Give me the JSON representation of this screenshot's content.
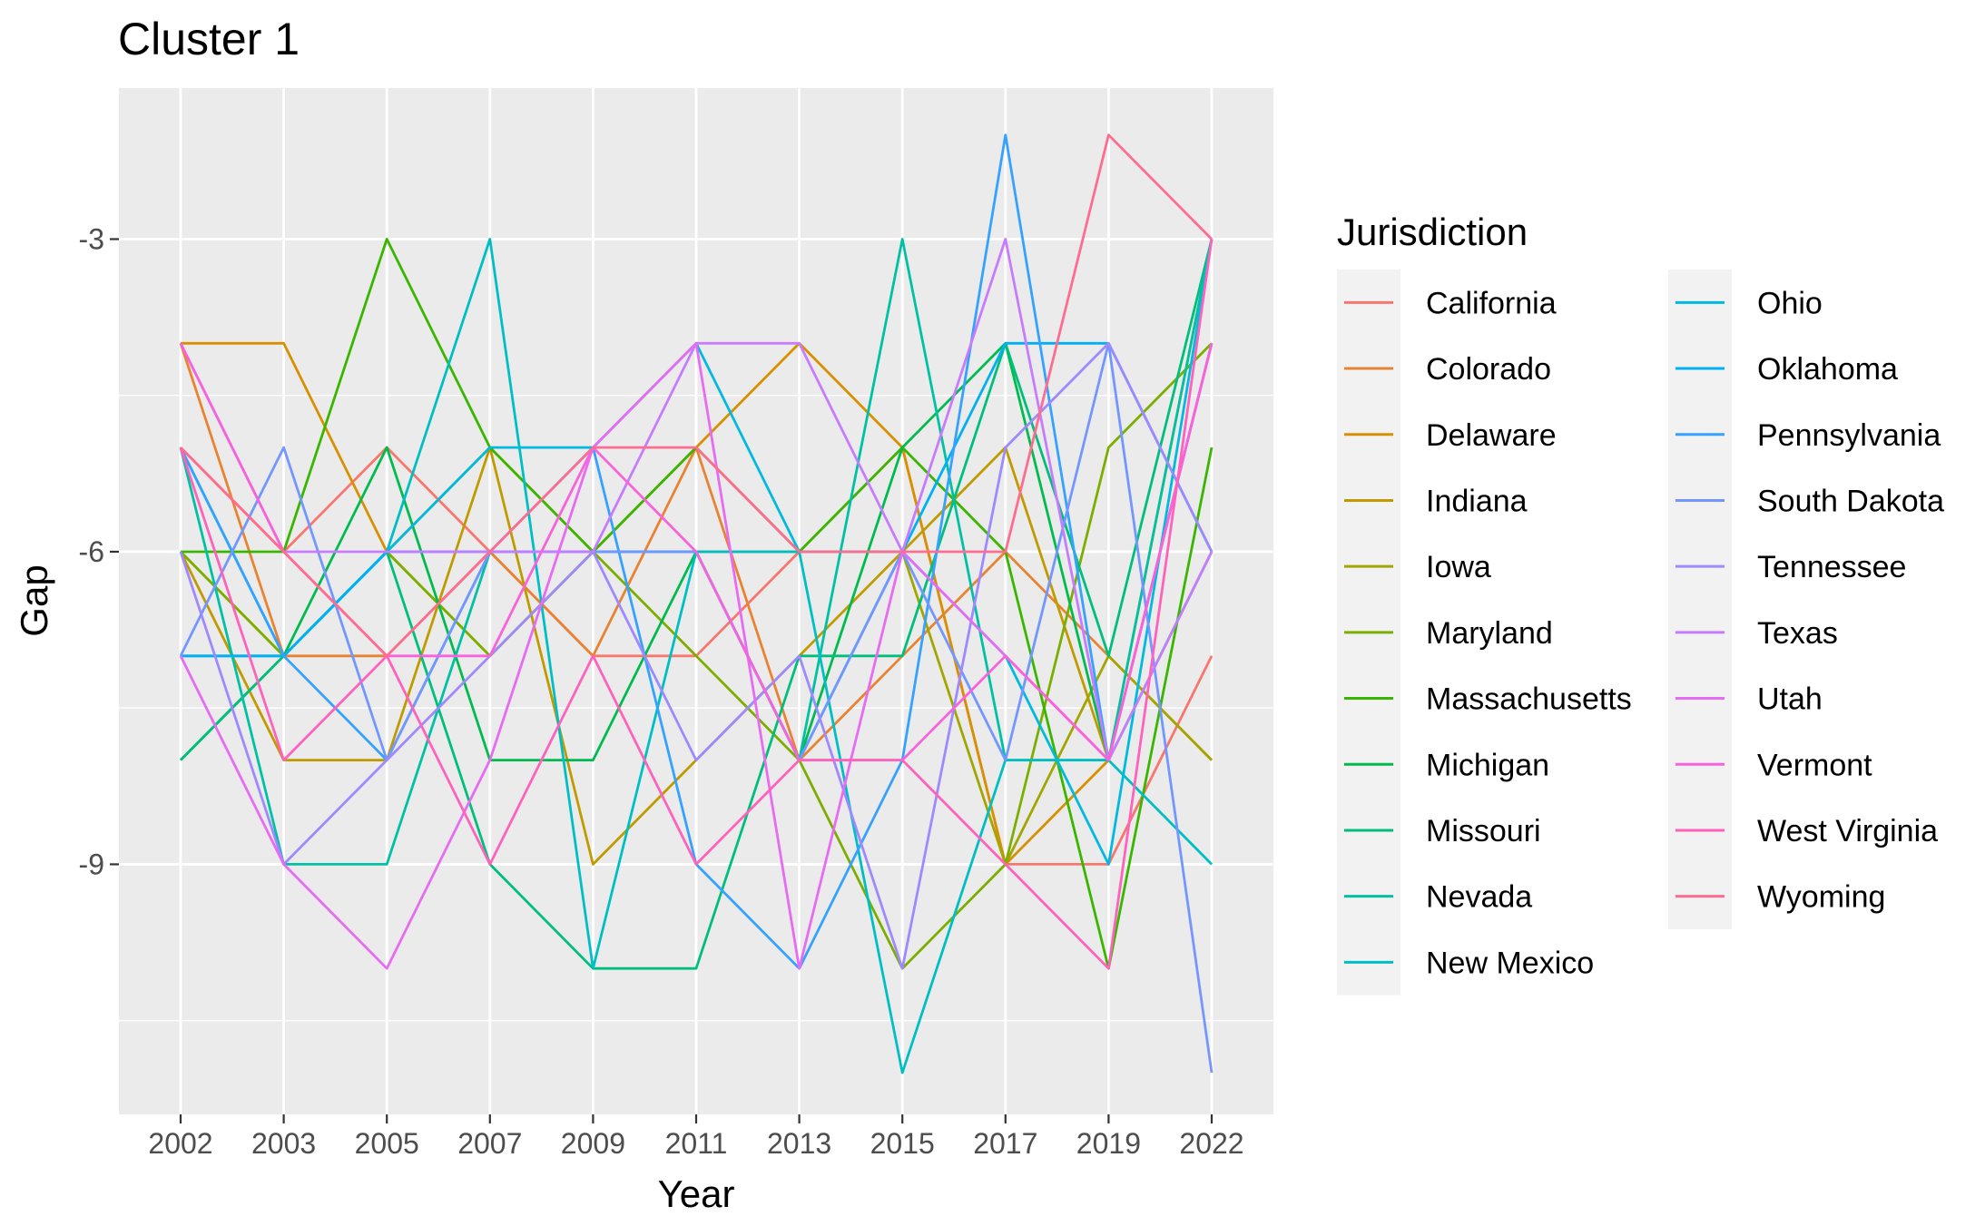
{
  "chart_data": {
    "type": "line",
    "title": "Cluster 1",
    "xlabel": "Year",
    "ylabel": "Gap",
    "legend_title": "Jurisdiction",
    "legend_position": "right",
    "grid": true,
    "categories": [
      "2002",
      "2003",
      "2005",
      "2007",
      "2009",
      "2011",
      "2013",
      "2015",
      "2017",
      "2019",
      "2022"
    ],
    "yticks": [
      -9,
      -6,
      -3
    ],
    "ylim": [
      -11.4,
      -1.55
    ],
    "series": [
      {
        "name": "California",
        "color": "#F8766D",
        "values": [
          -5,
          -6,
          -5,
          -6,
          -7,
          -7,
          -6,
          -5,
          -9,
          -9,
          -7
        ]
      },
      {
        "name": "Colorado",
        "color": "#EA8331",
        "values": [
          -4,
          -7,
          -7,
          -6,
          -7,
          -5,
          -8,
          -7,
          -6,
          -7,
          -8
        ]
      },
      {
        "name": "Delaware",
        "color": "#D89000",
        "values": [
          -4,
          -4,
          -6,
          -5,
          -6,
          -5,
          -4,
          -5,
          -9,
          -8,
          -3
        ]
      },
      {
        "name": "Indiana",
        "color": "#C09B00",
        "values": [
          -6,
          -8,
          -8,
          -5,
          -9,
          -8,
          -7,
          -6,
          -5,
          -8,
          -4
        ]
      },
      {
        "name": "Iowa",
        "color": "#A3A500",
        "values": [
          -6,
          -7,
          -6,
          -7,
          -6,
          -6,
          -6,
          -6,
          -9,
          -7,
          -8
        ]
      },
      {
        "name": "Maryland",
        "color": "#7CAE00",
        "values": [
          -6,
          -7,
          -6,
          -7,
          -6,
          -7,
          -8,
          -10,
          -9,
          -5,
          -4
        ]
      },
      {
        "name": "Massachusetts",
        "color": "#39B600",
        "values": [
          -6,
          -6,
          -3,
          -5,
          -6,
          -5,
          -6,
          -5,
          -6,
          -10,
          -5
        ]
      },
      {
        "name": "Michigan",
        "color": "#00BB4E",
        "values": [
          -8,
          -7,
          -5,
          -8,
          -8,
          -6,
          -8,
          -5,
          -4,
          -8,
          -6
        ]
      },
      {
        "name": "Missouri",
        "color": "#00BF7D",
        "values": [
          -8,
          -7,
          -6,
          -9,
          -10,
          -10,
          -7,
          -7,
          -4,
          -7,
          -3
        ]
      },
      {
        "name": "Nevada",
        "color": "#00C1A3",
        "values": [
          -5,
          -9,
          -9,
          -6,
          -6,
          -6,
          -8,
          -3,
          -8,
          -8,
          -3
        ]
      },
      {
        "name": "New Mexico",
        "color": "#00BFC4",
        "values": [
          -7,
          -7,
          -6,
          -3,
          -10,
          -6,
          -6,
          -11,
          -8,
          -8,
          -9
        ]
      },
      {
        "name": "Ohio",
        "color": "#00BAE0",
        "values": [
          -5,
          -7,
          -6,
          -5,
          -5,
          -4,
          -6,
          -6,
          -7,
          -9,
          -3
        ]
      },
      {
        "name": "Oklahoma",
        "color": "#00B0F6",
        "values": [
          -7,
          -7,
          -6,
          -6,
          -6,
          -6,
          -8,
          -6,
          -4,
          -4,
          -6
        ]
      },
      {
        "name": "Pennsylvania",
        "color": "#35A2FF",
        "values": [
          -5,
          -7,
          -8,
          -6,
          -5,
          -9,
          -10,
          -8,
          -2,
          -8,
          -4
        ]
      },
      {
        "name": "South Dakota",
        "color": "#7397FF",
        "values": [
          -7,
          -5,
          -8,
          -6,
          -6,
          -6,
          -8,
          -6,
          -8,
          -4,
          -11
        ]
      },
      {
        "name": "Tennessee",
        "color": "#9E89FF",
        "values": [
          -6,
          -9,
          -8,
          -7,
          -6,
          -8,
          -7,
          -10,
          -5,
          -4,
          -6
        ]
      },
      {
        "name": "Texas",
        "color": "#C77CFF",
        "values": [
          -4,
          -6,
          -6,
          -6,
          -6,
          -4,
          -4,
          -6,
          -3,
          -8,
          -6
        ]
      },
      {
        "name": "Utah",
        "color": "#E76BF3",
        "values": [
          -7,
          -9,
          -10,
          -8,
          -5,
          -4,
          -10,
          -6,
          -7,
          -8,
          -4
        ]
      },
      {
        "name": "Vermont",
        "color": "#FA62DB",
        "values": [
          -4,
          -6,
          -7,
          -7,
          -5,
          -6,
          -8,
          -8,
          -7,
          -8,
          -4
        ]
      },
      {
        "name": "West Virginia",
        "color": "#FF62BC",
        "values": [
          -5,
          -8,
          -7,
          -9,
          -7,
          -9,
          -8,
          -8,
          -9,
          -10,
          -3
        ]
      },
      {
        "name": "Wyoming",
        "color": "#FF6C91",
        "values": [
          -5,
          -6,
          -7,
          -6,
          -5,
          -5,
          -6,
          -6,
          -6,
          -2,
          -3
        ]
      }
    ]
  }
}
